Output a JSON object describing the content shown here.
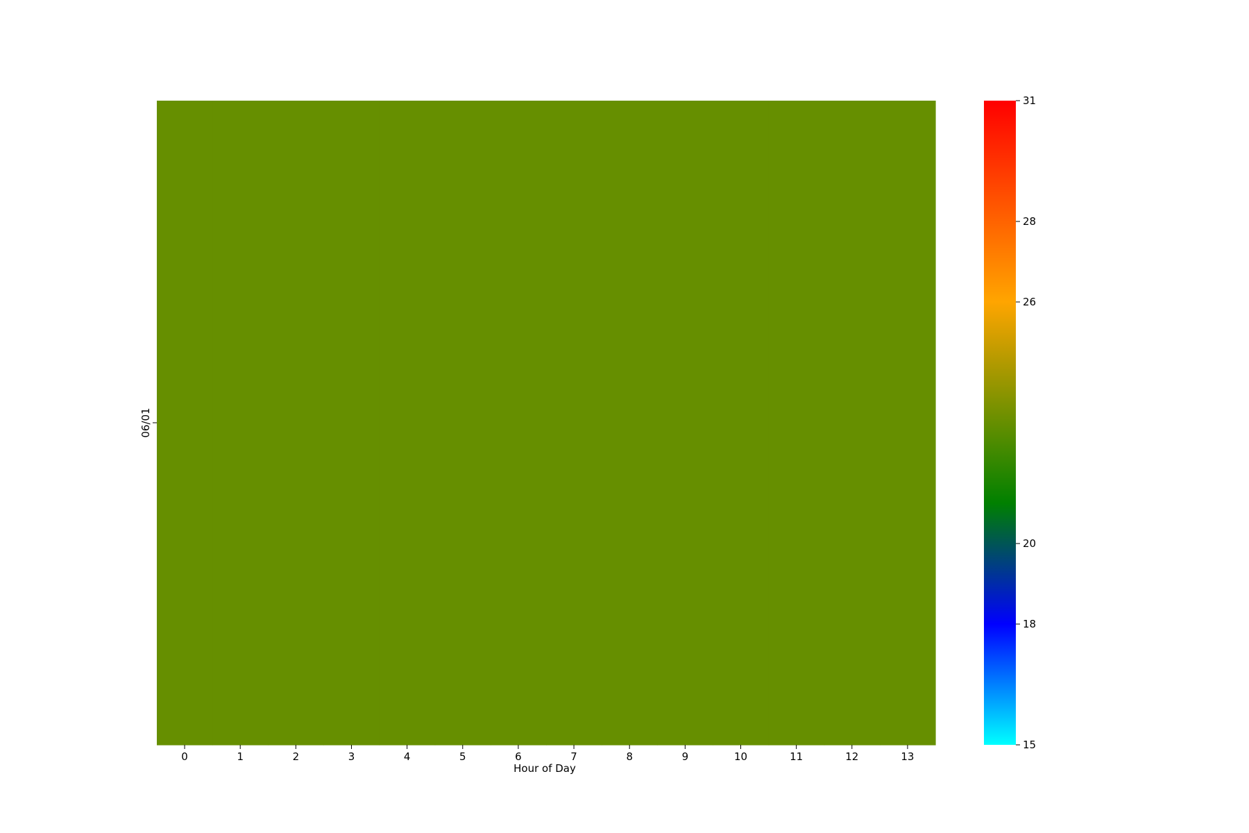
{
  "chart_data": {
    "type": "heatmap",
    "title": "",
    "xlabel": "Hour of Day",
    "ylabel": "",
    "x": [
      0,
      1,
      2,
      3,
      4,
      5,
      6,
      7,
      8,
      9,
      10,
      11,
      12,
      13
    ],
    "y": [
      "06/01"
    ],
    "values": [
      [
        23,
        23,
        23,
        23,
        23,
        23,
        23,
        23,
        23,
        23,
        23,
        23,
        23,
        23
      ]
    ],
    "colorbar": {
      "range": [
        15,
        31
      ],
      "ticks": [
        15,
        18,
        20,
        26,
        28,
        31
      ],
      "stops": [
        {
          "value": 15,
          "color": "#00ffff"
        },
        {
          "value": 18,
          "color": "#0000ff"
        },
        {
          "value": 21,
          "color": "#008000"
        },
        {
          "value": 26,
          "color": "#ffa500"
        },
        {
          "value": 31,
          "color": "#ff0000"
        }
      ]
    },
    "grid": false,
    "legend": "colorbar-right"
  }
}
